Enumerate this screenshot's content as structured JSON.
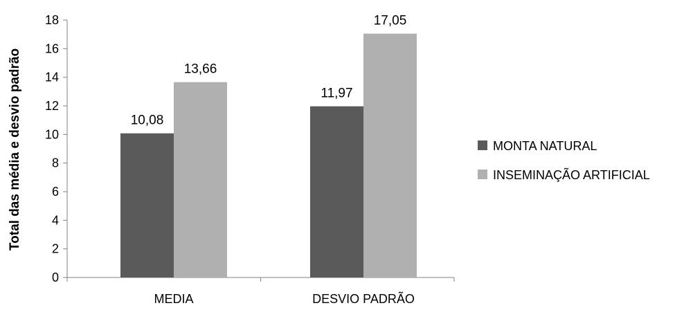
{
  "chart_data": {
    "type": "bar",
    "title": "",
    "xlabel": "",
    "ylabel": "Total das média e desvio padrão",
    "categories": [
      "MEDIA",
      "DESVIO PADRÃO"
    ],
    "series": [
      {
        "name": "MONTA NATURAL",
        "values": [
          10.08,
          11.97
        ],
        "labels": [
          "10,08",
          "11,97"
        ],
        "color": "#5a5a5a"
      },
      {
        "name": "INSEMINAÇÃO ARTIFICIAL",
        "values": [
          13.66,
          17.05
        ],
        "labels": [
          "13,66",
          "17,05"
        ],
        "color": "#b0b0b0"
      }
    ],
    "ylim": [
      0,
      18
    ],
    "yticks": [
      0,
      2,
      4,
      6,
      8,
      10,
      12,
      14,
      16,
      18
    ],
    "grid": false,
    "legend_position": "right",
    "axis_color": "#808080",
    "text_color": "#000000"
  }
}
